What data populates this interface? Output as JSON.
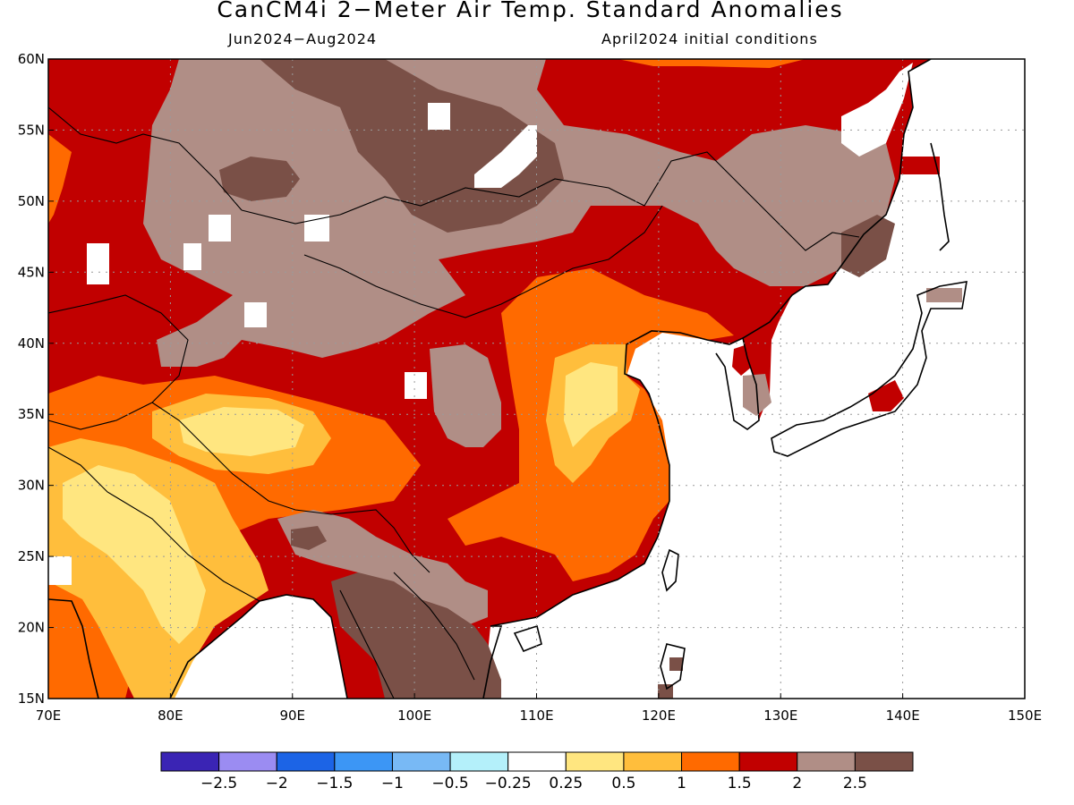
{
  "title": "CanCM4i 2−Meter Air Temp. Standard Anomalies",
  "period": "Jun2024−Aug2024",
  "initial_conditions": "April2024 initial conditions",
  "map": {
    "lon_range": [
      70,
      150
    ],
    "lat_range": [
      15,
      60
    ],
    "lon_ticks": [
      "70E",
      "80E",
      "90E",
      "100E",
      "110E",
      "120E",
      "130E",
      "140E",
      "150E"
    ],
    "lat_ticks": [
      "15N",
      "20N",
      "25N",
      "30N",
      "35N",
      "40N",
      "45N",
      "50N",
      "55N",
      "60N"
    ],
    "gridlines": true
  },
  "colorbar": {
    "colors": [
      "#3a24b4",
      "#9b8cf2",
      "#1c64e6",
      "#3c96f5",
      "#78b9f5",
      "#b4f0fa",
      "#ffffff",
      "#ffe680",
      "#ffbe3c",
      "#ff6a00",
      "#c10000",
      "#b08e86",
      "#7a5047"
    ],
    "labels": [
      "−2.5",
      "−2",
      "−1.5",
      "−1",
      "−0.5",
      "−0.25",
      "0.25",
      "0.5",
      "1",
      "1.5",
      "2",
      "2.5"
    ]
  }
}
